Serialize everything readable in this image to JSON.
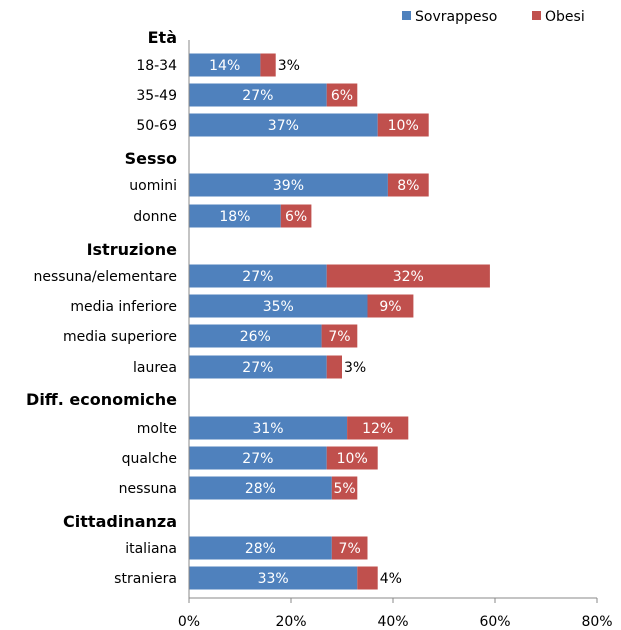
{
  "chart_data": {
    "type": "bar",
    "orientation": "horizontal",
    "stacked": true,
    "title": "",
    "xlabel": "",
    "ylabel": "",
    "xlim": [
      0,
      80
    ],
    "x_ticks": [
      "0%",
      "20%",
      "40%",
      "60%",
      "80%"
    ],
    "grid": false,
    "legend_position": "top-right",
    "series": [
      {
        "name": "Sovrappeso",
        "color": "#4F81BD"
      },
      {
        "name": "Obesi",
        "color": "#C0504D"
      }
    ],
    "groups": [
      {
        "title": "Età",
        "rows": [
          {
            "label": "18-34",
            "values": [
              14,
              3
            ],
            "labels": [
              "14%",
              "3%"
            ]
          },
          {
            "label": "35-49",
            "values": [
              27,
              6
            ],
            "labels": [
              "27%",
              "6%"
            ]
          },
          {
            "label": "50-69",
            "values": [
              37,
              10
            ],
            "labels": [
              "37%",
              "10%"
            ]
          }
        ]
      },
      {
        "title": "Sesso",
        "rows": [
          {
            "label": "uomini",
            "values": [
              39,
              8
            ],
            "labels": [
              "39%",
              "8%"
            ]
          },
          {
            "label": "donne",
            "values": [
              18,
              6
            ],
            "labels": [
              "18%",
              "6%"
            ]
          }
        ]
      },
      {
        "title": "Istruzione",
        "rows": [
          {
            "label": "nessuna/elementare",
            "values": [
              27,
              32
            ],
            "labels": [
              "27%",
              "32%"
            ]
          },
          {
            "label": "media inferiore",
            "values": [
              35,
              9
            ],
            "labels": [
              "35%",
              "9%"
            ]
          },
          {
            "label": "media superiore",
            "values": [
              26,
              7
            ],
            "labels": [
              "26%",
              "7%"
            ]
          },
          {
            "label": "laurea",
            "values": [
              27,
              3
            ],
            "labels": [
              "27%",
              "3%"
            ]
          }
        ]
      },
      {
        "title": "Diff. economiche",
        "rows": [
          {
            "label": "molte",
            "values": [
              31,
              12
            ],
            "labels": [
              "31%",
              "12%"
            ]
          },
          {
            "label": "qualche",
            "values": [
              27,
              10
            ],
            "labels": [
              "27%",
              "10%"
            ]
          },
          {
            "label": "nessuna",
            "values": [
              28,
              5
            ],
            "labels": [
              "28%",
              "5%"
            ]
          }
        ]
      },
      {
        "title": "Cittadinanza",
        "rows": [
          {
            "label": "italiana",
            "values": [
              28,
              7
            ],
            "labels": [
              "28%",
              "7%"
            ]
          },
          {
            "label": "straniera",
            "values": [
              33,
              4
            ],
            "labels": [
              "33%",
              "4%"
            ]
          }
        ]
      }
    ]
  }
}
